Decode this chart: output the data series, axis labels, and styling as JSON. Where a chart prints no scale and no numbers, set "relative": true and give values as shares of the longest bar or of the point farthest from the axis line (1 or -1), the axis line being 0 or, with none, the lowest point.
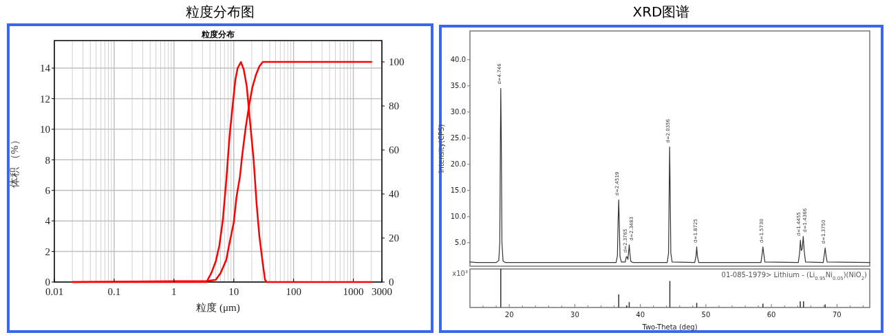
{
  "chart_data": [
    {
      "type": "line",
      "title": "粒度分布图",
      "subtitle": "粒度分布",
      "xlabel": "粒度 (μm)",
      "ylabel": "体积 （%）",
      "log": "x",
      "xlim": [
        0.01,
        3000
      ],
      "xticks": [
        0.01,
        0.1,
        1,
        10,
        100,
        1000,
        3000
      ],
      "ylim": [
        0,
        15.8
      ],
      "yticks": [
        0,
        2,
        4,
        6,
        8,
        10,
        12,
        14
      ],
      "y2lim": [
        0,
        109.7
      ],
      "y2ticks": [
        0,
        20,
        40,
        60,
        80,
        100
      ],
      "grid": true,
      "series": [
        {
          "color": "#ff0000",
          "x": [
            0.02,
            3.5,
            4.23,
            5.0,
            5.75,
            6.56,
            7.48,
            8.53,
            9.5,
            10.6,
            11.6,
            13.2,
            14.7,
            16.5,
            18.8,
            21.5,
            24.1,
            26.8,
            30.6,
            33.3,
            35.5,
            2000
          ],
          "values": [
            0,
            0,
            0.6,
            1.35,
            2.4,
            4.05,
            6.6,
            9.6,
            11.4,
            13.2,
            14.0,
            14.4,
            13.9,
            12.8,
            10.4,
            8.0,
            5.1,
            3.0,
            1.2,
            0.15,
            0,
            0
          ]
        },
        {
          "color": "#ff0000",
          "axis": "y2",
          "x": [
            0.02,
            3.55,
            5.0,
            6.0,
            7.48,
            8.53,
            10,
            11.1,
            12.7,
            13.9,
            15.8,
            18.0,
            20.5,
            23.4,
            26.8,
            30.6,
            2000
          ],
          "values": [
            0,
            0.5,
            1,
            4,
            10,
            18,
            27,
            38.5,
            48,
            58,
            70,
            80,
            88.5,
            94,
            98,
            100,
            100
          ]
        }
      ]
    },
    {
      "type": "line",
      "title": "XRD图谱",
      "ylabel": "Intensity(CPS)",
      "xlim": [
        14,
        75
      ],
      "ylim": [
        0.5,
        45.5
      ],
      "yticks": [
        {
          "value": 5,
          "label": "5.0"
        },
        {
          "value": 10,
          "label": "10.0"
        },
        {
          "value": 15,
          "label": "15.0"
        },
        {
          "value": 20,
          "label": "20.0"
        },
        {
          "value": 25,
          "label": "25.0"
        },
        {
          "value": 30,
          "label": "30.0"
        },
        {
          "value": 35,
          "label": "35.0"
        },
        {
          "value": 40,
          "label": "40.0"
        }
      ],
      "tick_labels": "y",
      "series": [
        {
          "color": "#333333",
          "x": [
            14,
            15,
            18,
            18.4,
            18.55,
            18.65,
            18.7,
            18.78,
            18.88,
            19.05,
            19.4,
            22,
            30,
            36.3,
            36.5,
            36.6,
            36.7,
            36.8,
            36.9,
            37.1,
            37.7,
            37.85,
            37.95,
            38.1,
            38.25,
            38.3,
            38.4,
            38.55,
            38.9,
            44.1,
            44.3,
            44.4,
            44.47,
            44.55,
            44.65,
            44.85,
            48.3,
            48.5,
            48.6,
            48.7,
            48.9,
            58.4,
            58.6,
            58.7,
            58.8,
            59,
            64.1,
            64.3,
            64.42,
            64.55,
            64.7,
            64.85,
            65,
            65.2,
            67.9,
            68.1,
            68.2,
            68.3,
            68.5,
            75
          ],
          "values": [
            1.3,
            1.2,
            1.2,
            1.6,
            5,
            25,
            34.5,
            25,
            5,
            1.5,
            1.2,
            1.2,
            1.2,
            1.2,
            2.5,
            9,
            13.2,
            8,
            2.3,
            1.3,
            1.3,
            2.3,
            2.3,
            1.8,
            3.8,
            4.6,
            3,
            1.4,
            1.2,
            1.2,
            3,
            15,
            23.3,
            15,
            3,
            1.3,
            1.2,
            2.5,
            4.2,
            2.5,
            1.2,
            1.2,
            3,
            4.2,
            3.2,
            1.3,
            1.2,
            3,
            5.5,
            3.5,
            3.8,
            6.2,
            3.5,
            1.3,
            1.2,
            3,
            4,
            2.8,
            1.3,
            1.2
          ]
        }
      ],
      "annotations": [
        {
          "text": "d=4.746",
          "x": 18.7,
          "y": 34.5
        },
        {
          "text": "d=2.4519",
          "x": 36.7,
          "y": 13.2
        },
        {
          "text": "d=2.3765",
          "x": 37.9,
          "y": 2.3
        },
        {
          "text": "d=2.3483",
          "x": 38.3,
          "y": 4.6
        },
        {
          "text": "d=2.0356",
          "x": 44.47,
          "y": 23.3
        },
        {
          "text": "d=1.8725",
          "x": 48.6,
          "y": 4.2
        },
        {
          "text": "d=1.5730",
          "x": 58.7,
          "y": 4.2
        },
        {
          "text": "d=1.4455",
          "x": 64.42,
          "y": 5.5
        },
        {
          "text": "d=1.4366",
          "x": 64.85,
          "y": 6.2
        },
        {
          "text": "d=1.3750",
          "x": 68.2,
          "y": 4
        }
      ]
    },
    {
      "type": "bar",
      "relative": true,
      "xlabel": "Two-Theta (deg)",
      "tick_labels": "x",
      "xlim": [
        14,
        75
      ],
      "xticks": [
        {
          "value": 16,
          "label": null
        },
        {
          "value": 18,
          "label": null
        },
        20,
        {
          "value": 22,
          "label": null
        },
        {
          "value": 24,
          "label": null
        },
        {
          "value": 26,
          "label": null
        },
        {
          "value": 28,
          "label": null
        },
        30,
        {
          "value": 32,
          "label": null
        },
        {
          "value": 34,
          "label": null
        },
        {
          "value": 36,
          "label": null
        },
        {
          "value": 38,
          "label": null
        },
        40,
        {
          "value": 42,
          "label": null
        },
        {
          "value": 44,
          "label": null
        },
        {
          "value": 46,
          "label": null
        },
        {
          "value": 48,
          "label": null
        },
        50,
        {
          "value": 52,
          "label": null
        },
        {
          "value": 54,
          "label": null
        },
        {
          "value": 56,
          "label": null
        },
        {
          "value": 58,
          "label": null
        },
        60,
        {
          "value": 62,
          "label": null
        },
        {
          "value": 64,
          "label": null
        },
        {
          "value": 66,
          "label": null
        },
        {
          "value": 68,
          "label": null
        },
        70,
        {
          "value": 72,
          "label": null
        },
        {
          "value": 74,
          "label": null
        }
      ],
      "x": [
        18.7,
        36.7,
        37.9,
        38.3,
        44.5,
        48.6,
        58.7,
        64.4,
        64.9,
        68.2
      ],
      "values": [
        1,
        0.34,
        0.05,
        0.14,
        0.69,
        0.12,
        0.1,
        0.16,
        0.16,
        0.08
      ],
      "color": "#333333",
      "annotations": [
        "x10³",
        "01-085-1979> Lithium - (Li$_{0.95}$Ni$_{0.05}$)(NiO$_{2}$)"
      ]
    }
  ]
}
